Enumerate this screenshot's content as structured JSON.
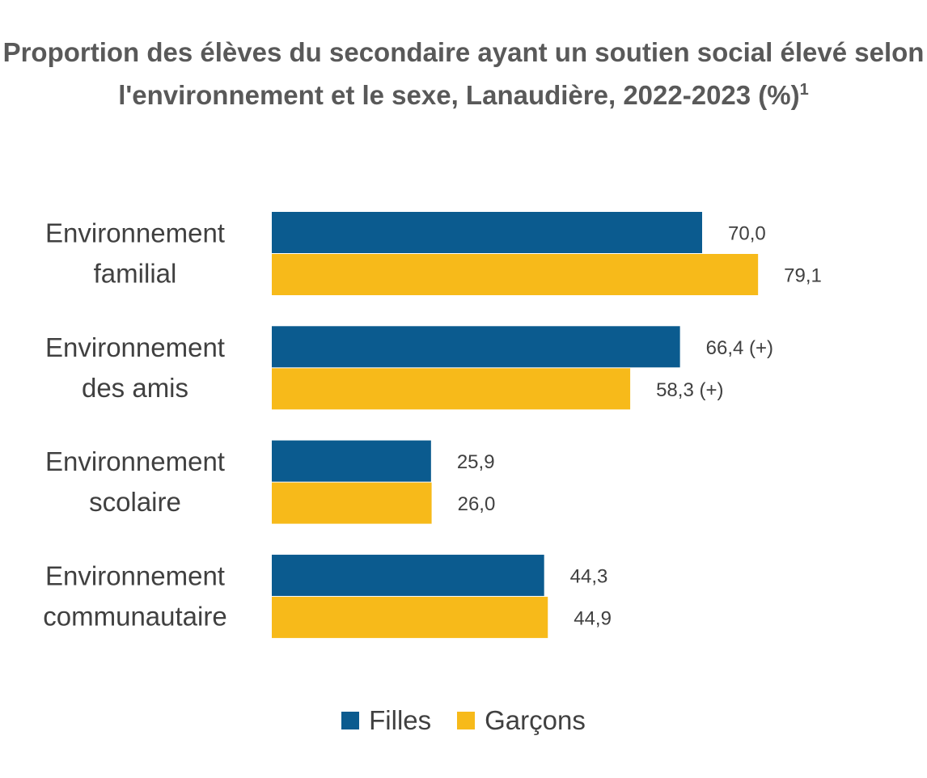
{
  "title": "Proportion des élèves du secondaire ayant un soutien social élevé selon l'environnement et le sexe, Lanaudière, 2022-2023 (%)",
  "title_footnote": "1",
  "colors": {
    "filles": "#0B5B8F",
    "garcons": "#F7BA1A"
  },
  "chart_data": {
    "type": "bar",
    "orientation": "horizontal",
    "categories": [
      [
        "Environnement",
        "familial"
      ],
      [
        "Environnement",
        "des amis"
      ],
      [
        "Environnement",
        "scolaire"
      ],
      [
        "Environnement",
        "communautaire"
      ]
    ],
    "series": [
      {
        "name": "Filles",
        "values": [
          70.0,
          66.4,
          25.9,
          44.3
        ],
        "labels": [
          "70,0",
          "66,4 (+)",
          "25,9",
          "44,3"
        ]
      },
      {
        "name": "Garçons",
        "values": [
          79.1,
          58.3,
          26.0,
          44.9
        ],
        "labels": [
          "79,1",
          "58,3 (+)",
          "26,0",
          "44,9"
        ]
      }
    ],
    "xlim": [
      0,
      100
    ],
    "grid": false,
    "legend": "bottom"
  }
}
